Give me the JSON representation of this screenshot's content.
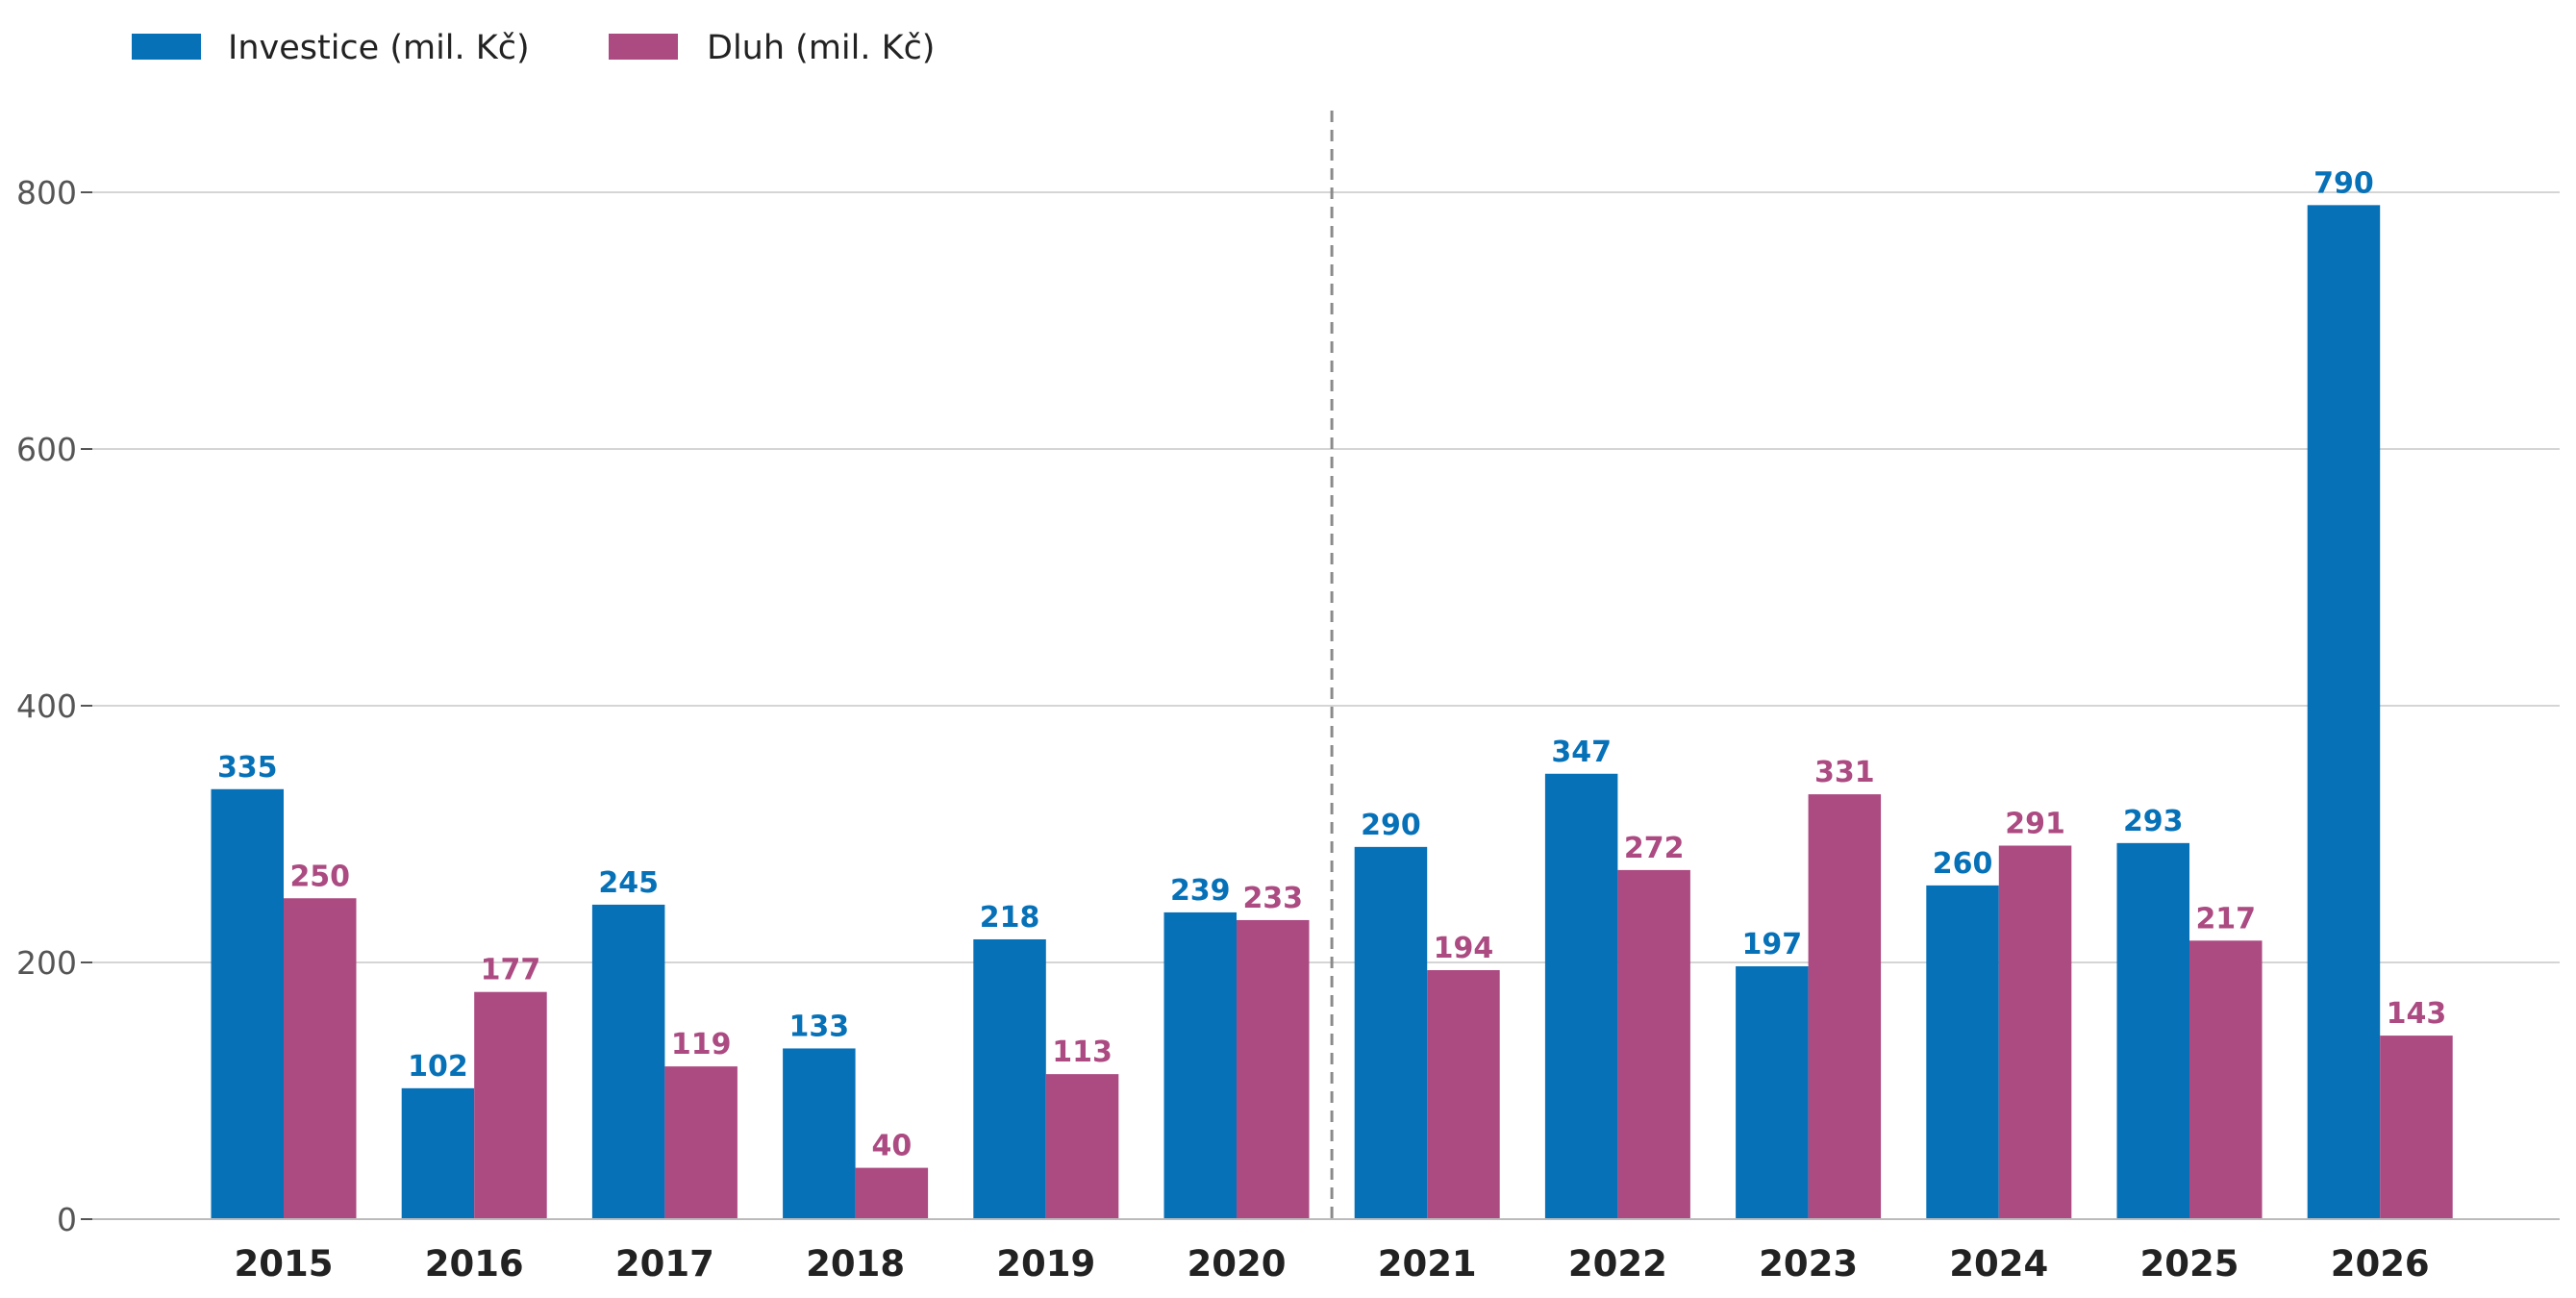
{
  "chart_data": {
    "type": "bar",
    "categories": [
      "2015",
      "2016",
      "2017",
      "2018",
      "2019",
      "2020",
      "2021",
      "2022",
      "2023",
      "2024",
      "2025",
      "2026"
    ],
    "series": [
      {
        "name": "Investice (mil. Kč)",
        "color": "#0771b8",
        "values": [
          335,
          102,
          245,
          133,
          218,
          239,
          290,
          347,
          197,
          260,
          293,
          790
        ]
      },
      {
        "name": "Dluh (mil. Kč)",
        "color": "#ac4a82",
        "values": [
          250,
          177,
          119,
          40,
          113,
          233,
          194,
          272,
          331,
          291,
          217,
          143
        ]
      }
    ],
    "yticks": [
      "0",
      "200",
      "400",
      "600",
      "800"
    ],
    "ylim": [
      0,
      800
    ],
    "grid": "horizontal",
    "legend_position": "top-left",
    "divider_after_category": "2020",
    "divider_style": "dashed",
    "data_labels": true
  }
}
